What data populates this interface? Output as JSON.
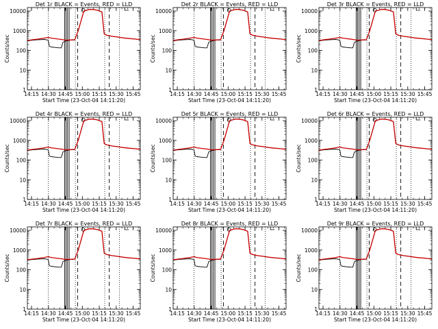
{
  "chart_data": {
    "type": "line",
    "xlabel": "Start Time (23-Oct-04 14:11:20)",
    "ylabel": "Counts/sec",
    "x_tick_labels": [
      "14:15",
      "14:30",
      "14:45",
      "15:00",
      "15:15",
      "15:30",
      "15:45"
    ],
    "x_tick_minutes": [
      3.67,
      18.67,
      33.67,
      48.67,
      63.67,
      78.67,
      93.67
    ],
    "xlim_minutes": [
      0,
      100
    ],
    "y_tick_labels": [
      "1",
      "10",
      "100",
      "1000",
      "10000"
    ],
    "y_scale": "log",
    "ylim": [
      1,
      15000
    ],
    "series_colors": {
      "events": "#000000",
      "lld": "#cc0000"
    },
    "black_x_minutes": [
      0,
      5,
      10,
      15,
      18.5,
      19.5,
      21,
      25,
      28,
      30,
      31.5,
      34,
      38,
      42,
      45,
      50,
      55,
      58,
      62,
      66,
      68,
      70,
      75,
      80,
      85,
      90,
      95,
      100
    ],
    "black_y": [
      310,
      330,
      350,
      360,
      330,
      160,
      150,
      140,
      135,
      135,
      260,
      300,
      330,
      340,
      1000,
      10000,
      12000,
      12000,
      11000,
      9000,
      700,
      600,
      520,
      480,
      430,
      400,
      380,
      350
    ],
    "red_x_minutes": [
      0,
      5,
      10,
      15,
      18.5,
      21,
      25,
      30,
      34,
      38,
      42,
      45,
      50,
      55,
      58,
      62,
      66,
      68,
      70,
      75,
      80,
      85,
      90,
      95,
      100
    ],
    "red_y": [
      320,
      350,
      380,
      420,
      460,
      420,
      390,
      360,
      330,
      340,
      350,
      1000,
      10000,
      12000,
      12000,
      11000,
      9000,
      700,
      600,
      520,
      480,
      430,
      400,
      380,
      350
    ],
    "dotted_vlines_minutes": [
      18.5,
      42.5,
      68.5,
      81.5
    ],
    "dashed_vlines_minutes": [
      44.5,
      72.5
    ],
    "solid_vlines_minutes": [
      33,
      34.3,
      35.6,
      37
    ],
    "panels": [
      {
        "title": "Det 1r BLACK = Events, RED = LLD"
      },
      {
        "title": "Det 2r BLACK = Events, RED = LLD"
      },
      {
        "title": "Det 3r BLACK = Events, RED = LLD"
      },
      {
        "title": "Det 4r BLACK = Events, RED = LLD"
      },
      {
        "title": "Det 5r BLACK = Events, RED = LLD"
      },
      {
        "title": "Det 6r BLACK = Events, RED = LLD"
      },
      {
        "title": "Det 7r BLACK = Events, RED = LLD"
      },
      {
        "title": "Det 8r BLACK = Events, RED = LLD"
      },
      {
        "title": "Det 9r BLACK = Events, RED = LLD"
      }
    ]
  }
}
